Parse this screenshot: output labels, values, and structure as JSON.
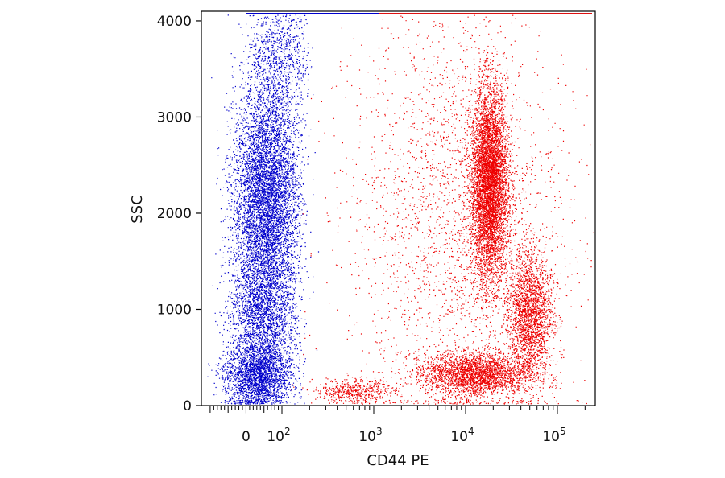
{
  "chart_data": {
    "type": "scatter",
    "title": "",
    "xlabel": "CD44 PE",
    "ylabel": "SSC",
    "x_scale": "biexponential (linear near 0, log above ~100)",
    "ylim": [
      0,
      4100
    ],
    "y_ticks": [
      {
        "value": 0,
        "label": "0"
      },
      {
        "value": 1000,
        "label": "1000"
      },
      {
        "value": 2000,
        "label": "2000"
      },
      {
        "value": 3000,
        "label": "3000"
      },
      {
        "value": 4000,
        "label": "4000"
      }
    ],
    "x_ticks": [
      {
        "value": 0,
        "base": "0",
        "exp": ""
      },
      {
        "value": 100,
        "base": "10",
        "exp": "2"
      },
      {
        "value": 1000,
        "base": "10",
        "exp": "3"
      },
      {
        "value": 10000,
        "base": "10",
        "exp": "4"
      },
      {
        "value": 100000,
        "base": "10",
        "exp": "5"
      }
    ],
    "grid": false,
    "legend": "none",
    "series": [
      {
        "color": "#0000cc",
        "clusters": [
          {
            "x_center": 30,
            "y_center": 300,
            "x_spread_decades": 0.35,
            "y_spread": 160,
            "points": 5200
          },
          {
            "x_center": 45,
            "y_center": 900,
            "x_spread_decades": 0.35,
            "y_spread": 350,
            "points": 2400
          },
          {
            "x_center": 55,
            "y_center": 2150,
            "x_spread_decades": 0.3,
            "y_spread": 600,
            "points": 6200
          },
          {
            "x_center": 90,
            "y_center": 3600,
            "x_spread_decades": 0.3,
            "y_spread": 350,
            "points": 900
          }
        ]
      },
      {
        "color": "#ee0000",
        "clusters": [
          {
            "x_center": 600,
            "y_center": 150,
            "x_spread_decades": 0.22,
            "y_spread": 60,
            "points": 500
          },
          {
            "x_center": 13000,
            "y_center": 330,
            "x_spread_decades": 0.3,
            "y_spread": 110,
            "points": 6500
          },
          {
            "x_center": 50000,
            "y_center": 950,
            "x_spread_decades": 0.12,
            "y_spread": 330,
            "points": 2200
          },
          {
            "x_center": 18000,
            "y_center": 2300,
            "x_spread_decades": 0.1,
            "y_spread": 500,
            "points": 6800
          },
          {
            "x_center": 8000,
            "y_center": 2000,
            "x_spread_decades": 0.6,
            "y_spread": 1100,
            "points": 3400
          }
        ]
      }
    ]
  }
}
